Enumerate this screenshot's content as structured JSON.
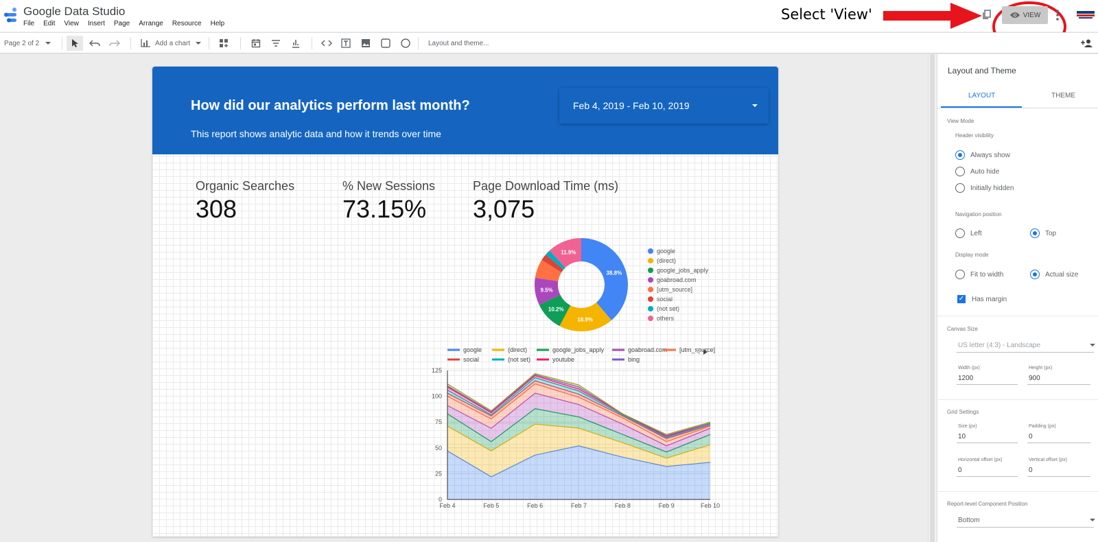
{
  "app": {
    "title": "Google Data Studio",
    "menu": [
      "File",
      "Edit",
      "View",
      "Insert",
      "Page",
      "Arrange",
      "Resource",
      "Help"
    ],
    "view_button_label": "VIEW",
    "annotation": "Select 'View'"
  },
  "toolbar": {
    "page_indicator": "Page 2 of 2",
    "add_chart_label": "Add a chart",
    "layout_theme_label": "Layout and theme..."
  },
  "report": {
    "title": "How did our analytics perform last month?",
    "subtitle": "This report shows analytic data and how it trends over time",
    "date_range": "Feb 4, 2019 - Feb 10, 2019",
    "metrics": [
      {
        "label": "Organic Searches",
        "value": "308"
      },
      {
        "label": "% New Sessions",
        "value": "73.15%"
      },
      {
        "label": "Page Download Time (ms)",
        "value": "3,075"
      }
    ]
  },
  "colors": {
    "header_blue": "#1565c0",
    "accent": "#1a73e8",
    "annotation_red": "#e8141c"
  },
  "chart_data": [
    {
      "type": "pie",
      "donut": true,
      "labels": [
        "google",
        "(direct)",
        "google_jobs_apply",
        "goabroad.com",
        "[utm_source]",
        "social",
        "(not set)",
        "others"
      ],
      "values": [
        38.8,
        18.9,
        10.2,
        9.5,
        6.5,
        2.3,
        1.9,
        11.9
      ],
      "slice_labels": [
        "38.8%",
        "18.9%",
        "10.2%",
        "9.5%",
        "",
        "",
        "",
        "11.9%"
      ],
      "colors": [
        "#4285f4",
        "#f4b400",
        "#0f9d58",
        "#ab47bc",
        "#ff7043",
        "#db4437",
        "#00acc1",
        "#f06292"
      ],
      "legend_position": "right"
    },
    {
      "type": "area",
      "stacked": true,
      "categories": [
        "Feb 4",
        "Feb 5",
        "Feb 6",
        "Feb 7",
        "Feb 8",
        "Feb 9",
        "Feb 10"
      ],
      "ylim": [
        0,
        125
      ],
      "yticks": [
        "0",
        "25",
        "50",
        "75",
        "100",
        "125"
      ],
      "legend_position": "top",
      "series": [
        {
          "name": "google",
          "color": "#4285f4",
          "values": [
            47,
            22,
            43,
            52,
            41,
            32,
            36
          ]
        },
        {
          "name": "(direct)",
          "color": "#f4b400",
          "values": [
            24,
            25,
            30,
            17,
            14,
            8,
            17
          ]
        },
        {
          "name": "google_jobs_apply",
          "color": "#0f9d58",
          "values": [
            12,
            9,
            15,
            11,
            8,
            6,
            10
          ]
        },
        {
          "name": "goabroad.com",
          "color": "#ab47bc",
          "values": [
            8,
            13,
            15,
            12,
            10,
            6,
            6
          ]
        },
        {
          "name": "[utm_source]",
          "color": "#ff7043",
          "values": [
            9,
            9,
            9,
            7,
            6,
            4,
            2
          ]
        },
        {
          "name": "social",
          "color": "#db4437",
          "values": [
            3,
            3,
            3,
            3,
            2,
            3,
            1
          ]
        },
        {
          "name": "(not set)",
          "color": "#00acc1",
          "values": [
            3,
            1,
            3,
            3,
            1,
            1,
            1
          ]
        },
        {
          "name": "youtube",
          "color": "#e91e63",
          "values": [
            3,
            2,
            2,
            2,
            1,
            1,
            1
          ]
        },
        {
          "name": "bing",
          "color": "#7e57c2",
          "values": [
            1,
            1,
            1,
            2,
            0,
            1,
            0
          ]
        },
        {
          "name": "",
          "color": "#9e9d24",
          "values": [
            2,
            1,
            1,
            2,
            0,
            1,
            1
          ]
        }
      ]
    }
  ],
  "panel": {
    "title": "Layout and Theme",
    "tabs": [
      "LAYOUT",
      "THEME"
    ],
    "view_mode": "View Mode",
    "header_visibility": "Header visibility",
    "header_options": [
      "Always show",
      "Auto hide",
      "Initially hidden"
    ],
    "navigation_position": "Navigation position",
    "nav_options": [
      "Left",
      "Top"
    ],
    "display_mode": "Display mode",
    "display_options": [
      "Fit to width",
      "Actual size"
    ],
    "has_margin": "Has margin",
    "canvas_size": "Canvas Size",
    "canvas_preset": "US letter (4:3) - Landscape",
    "width_label": "Width (px)",
    "width_value": "1200",
    "height_label": "Height (px)",
    "height_value": "900",
    "grid_settings": "Grid Settings",
    "size_label": "Size (px)",
    "size_value": "10",
    "padding_label": "Padding (px)",
    "padding_value": "0",
    "hoffset_label": "Horizontal offset (px)",
    "hoffset_value": "0",
    "voffset_label": "Vertical offset (px)",
    "voffset_value": "0",
    "component_position_label": "Report-level Component Position",
    "component_position_value": "Bottom"
  }
}
